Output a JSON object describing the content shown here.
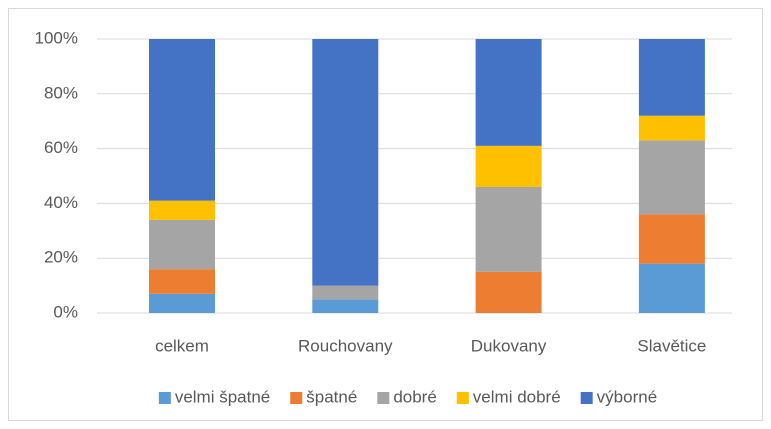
{
  "chart_data": {
    "type": "stacked_bar",
    "categories": [
      "celkem",
      "Rouchovany",
      "Dukovany",
      "Slavětice"
    ],
    "series": [
      {
        "name": "velmi špatné",
        "color": "#5b9bd5",
        "values": [
          7,
          5,
          0,
          18
        ]
      },
      {
        "name": "špatné",
        "color": "#ed7d31",
        "values": [
          9,
          0,
          15,
          18
        ]
      },
      {
        "name": "dobré",
        "color": "#a5a5a5",
        "values": [
          18,
          5,
          31,
          27
        ]
      },
      {
        "name": "velmi dobré",
        "color": "#ffc000",
        "values": [
          7,
          0,
          15,
          9
        ]
      },
      {
        "name": "výborné",
        "color": "#4472c4",
        "values": [
          59,
          90,
          39,
          28
        ]
      }
    ],
    "ylim": [
      0,
      100
    ],
    "yticks": [
      {
        "value": 0,
        "label": "0%"
      },
      {
        "value": 20,
        "label": "20%"
      },
      {
        "value": 40,
        "label": "40%"
      },
      {
        "value": 60,
        "label": "60%"
      },
      {
        "value": 80,
        "label": "80%"
      },
      {
        "value": 100,
        "label": "100%"
      }
    ],
    "grid": true,
    "legend": "bottom"
  }
}
